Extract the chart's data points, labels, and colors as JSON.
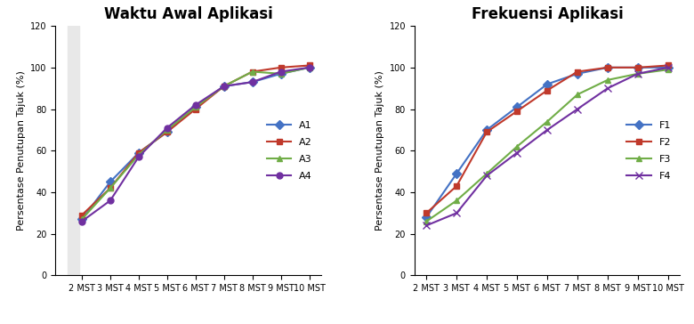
{
  "x_labels": [
    "2 MST",
    "3 MST",
    "4 MST",
    "5 MST",
    "6 MST",
    "7 MST",
    "8 MST",
    "9 MST",
    "10 MST"
  ],
  "chart1": {
    "title": "Waktu Awal Aplikasi",
    "ylabel": "Persentase Penutupan Tajuk (%)",
    "ylim": [
      0,
      120
    ],
    "yticks": [
      0,
      20,
      40,
      60,
      80,
      100,
      120
    ],
    "series": {
      "A1": {
        "values": [
          27,
          45,
          59,
          69,
          81,
          91,
          93,
          97,
          100
        ],
        "color": "#4472C4",
        "marker": "D",
        "markersize": 5
      },
      "A2": {
        "values": [
          29,
          42,
          59,
          69,
          80,
          91,
          98,
          100,
          101
        ],
        "color": "#C0392B",
        "marker": "s",
        "markersize": 5
      },
      "A3": {
        "values": [
          27,
          42,
          58,
          70,
          81,
          91,
          98,
          97,
          100
        ],
        "color": "#70AD47",
        "marker": "^",
        "markersize": 5
      },
      "A4": {
        "values": [
          26,
          36,
          57,
          71,
          82,
          91,
          93,
          98,
          100
        ],
        "color": "#7030A0",
        "marker": "o",
        "markersize": 5
      }
    }
  },
  "chart2": {
    "title": "Frekuensi Aplikasi",
    "ylabel": "Persentase Penutupan Tajuk (%)",
    "ylim": [
      0,
      120
    ],
    "yticks": [
      0,
      20,
      40,
      60,
      80,
      100,
      120
    ],
    "series": {
      "F1": {
        "values": [
          28,
          49,
          70,
          81,
          92,
          97,
          100,
          100,
          100
        ],
        "color": "#4472C4",
        "marker": "D",
        "markersize": 5
      },
      "F2": {
        "values": [
          30,
          43,
          69,
          79,
          89,
          98,
          100,
          100,
          101
        ],
        "color": "#C0392B",
        "marker": "s",
        "markersize": 5
      },
      "F3": {
        "values": [
          26,
          36,
          49,
          62,
          74,
          87,
          94,
          97,
          99
        ],
        "color": "#70AD47",
        "marker": "^",
        "markersize": 5
      },
      "F4": {
        "values": [
          24,
          30,
          48,
          59,
          70,
          80,
          90,
          97,
          100
        ],
        "color": "#7030A0",
        "marker": "x",
        "markersize": 6
      }
    }
  },
  "background_left": "#E8E8E8",
  "title_fontsize": 12,
  "axis_label_fontsize": 8,
  "tick_fontsize": 7,
  "legend_fontsize": 8
}
